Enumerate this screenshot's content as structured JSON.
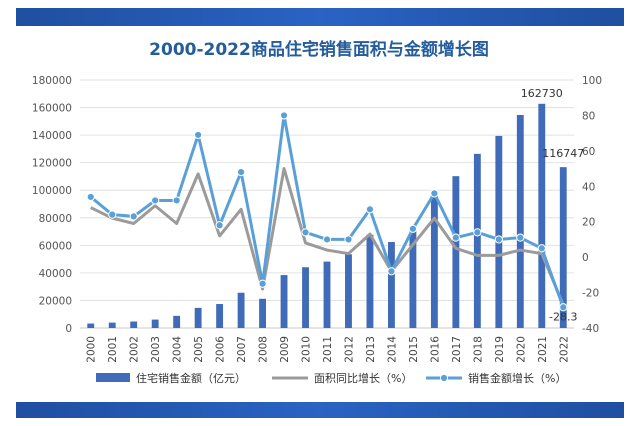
{
  "colors": {
    "band": "#2456b2",
    "bars": "#3f6bb8",
    "area_line": "#9b9b9b",
    "sales_line": "#5aa0d8",
    "title": "#245c9c"
  },
  "chart_data": {
    "type": "bar",
    "title": "2000-2022商品住宅销售面积与金额增长图",
    "categories": [
      "2000",
      "2001",
      "2002",
      "2003",
      "2004",
      "2005",
      "2006",
      "2007",
      "2008",
      "2009",
      "2010",
      "2011",
      "2012",
      "2013",
      "2014",
      "2015",
      "2016",
      "2017",
      "2018",
      "2019",
      "2020",
      "2021",
      "2022"
    ],
    "series": [
      {
        "name": "住宅销售金额（亿元）",
        "type": "bar",
        "axis": "left",
        "values": [
          3229,
          3900,
          4700,
          6100,
          8800,
          14600,
          17400,
          25600,
          21200,
          38400,
          44100,
          48200,
          53500,
          67700,
          62400,
          72800,
          99000,
          110200,
          126400,
          139400,
          154600,
          162730,
          116747
        ]
      },
      {
        "name": "面积同比增长（%）",
        "type": "line",
        "axis": "right",
        "values": [
          28,
          22,
          19,
          29,
          19,
          47,
          12,
          27,
          -18,
          50,
          8,
          4,
          2,
          13,
          -8,
          7,
          22,
          5,
          1,
          1,
          4,
          2,
          -27
        ]
      },
      {
        "name": "销售金额增长（%）",
        "type": "line",
        "axis": "right",
        "values": [
          34,
          24,
          23,
          32,
          32,
          69,
          18,
          48,
          -15,
          80,
          14,
          10,
          10,
          27,
          -8,
          16,
          36,
          11,
          14,
          10,
          11,
          5,
          -28.3
        ]
      }
    ],
    "left_axis": {
      "min": 0,
      "max": 180000,
      "ticks": [
        0,
        20000,
        40000,
        60000,
        80000,
        100000,
        120000,
        140000,
        160000,
        180000
      ]
    },
    "right_axis": {
      "min": -40,
      "max": 100,
      "ticks": [
        -40,
        -20,
        0,
        20,
        40,
        60,
        80,
        100
      ]
    },
    "data_labels": [
      {
        "series": 0,
        "index": 21,
        "text": "162730"
      },
      {
        "series": 0,
        "index": 22,
        "text": "116747"
      },
      {
        "series": 2,
        "index": 22,
        "text": "-28.3"
      }
    ],
    "grid": true,
    "legend": "bottom"
  }
}
